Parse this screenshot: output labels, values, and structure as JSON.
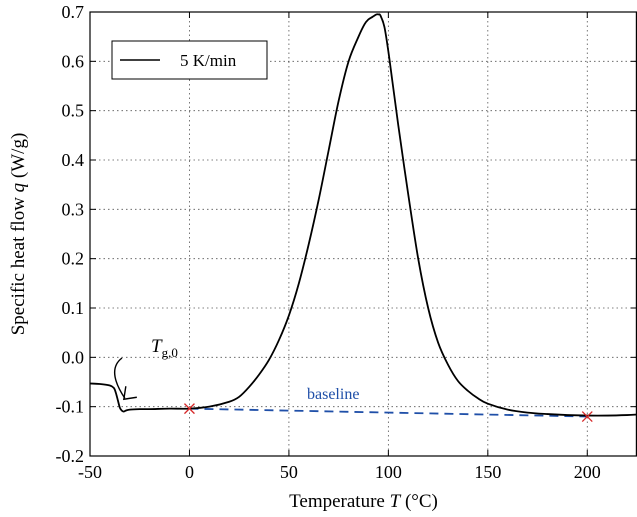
{
  "chart_data": {
    "type": "line",
    "xlabel": "Temperature",
    "xlabel_symbol": "T",
    "xlabel_unit": "(°C)",
    "ylabel": "Specific heat flow",
    "ylabel_symbol": "q",
    "ylabel_unit": "(W/g)",
    "xlim": [
      -50,
      225
    ],
    "ylim": [
      -0.2,
      0.7
    ],
    "xticks": [
      -50,
      0,
      50,
      100,
      150,
      200
    ],
    "yticks": [
      -0.2,
      -0.1,
      0.0,
      0.1,
      0.2,
      0.3,
      0.4,
      0.5,
      0.6,
      0.7
    ],
    "xtick_labels": [
      "-50",
      "0",
      "50",
      "100",
      "150",
      "200"
    ],
    "ytick_labels": [
      "-0.2",
      "-0.1",
      "0.0",
      "0.1",
      "0.2",
      "0.3",
      "0.4",
      "0.5",
      "0.6",
      "0.7"
    ],
    "grid": true,
    "legend_position": "top-left",
    "series": [
      {
        "name": "5 K/min",
        "color": "#000000",
        "x": [
          -50,
          -45,
          -40,
          -38,
          -37,
          -36,
          -35,
          -34,
          -33,
          -32,
          -30,
          -25,
          -20,
          -10,
          0,
          10,
          20,
          25,
          30,
          35,
          40,
          45,
          50,
          55,
          60,
          65,
          70,
          75,
          80,
          85,
          88,
          90,
          92,
          94,
          95,
          96,
          98,
          100,
          102,
          105,
          110,
          115,
          120,
          125,
          130,
          135,
          140,
          145,
          150,
          160,
          170,
          180,
          190,
          200,
          210,
          220,
          225
        ],
        "y": [
          -0.053,
          -0.054,
          -0.057,
          -0.062,
          -0.072,
          -0.087,
          -0.102,
          -0.108,
          -0.11,
          -0.108,
          -0.106,
          -0.105,
          -0.105,
          -0.104,
          -0.104,
          -0.1,
          -0.09,
          -0.08,
          -0.06,
          -0.035,
          -0.005,
          0.035,
          0.085,
          0.15,
          0.23,
          0.32,
          0.42,
          0.52,
          0.6,
          0.65,
          0.675,
          0.685,
          0.69,
          0.695,
          0.695,
          0.693,
          0.67,
          0.62,
          0.56,
          0.47,
          0.33,
          0.2,
          0.1,
          0.03,
          -0.015,
          -0.048,
          -0.068,
          -0.083,
          -0.094,
          -0.106,
          -0.112,
          -0.115,
          -0.117,
          -0.118,
          -0.118,
          -0.117,
          -0.116
        ]
      }
    ],
    "baseline": {
      "label": "baseline",
      "color": "#1f4fa8",
      "x": [
        0,
        200
      ],
      "y": [
        -0.104,
        -0.12
      ]
    },
    "markers": {
      "color": "#d62728",
      "points": [
        {
          "x": 0,
          "y": -0.104
        },
        {
          "x": 200,
          "y": -0.12
        }
      ]
    },
    "annotation": {
      "symbol": "T",
      "subscript": "g,0",
      "x": -35,
      "y": -0.087
    }
  }
}
